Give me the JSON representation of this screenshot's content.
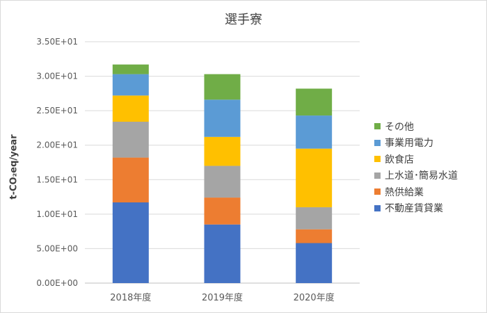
{
  "chart_data": {
    "type": "bar",
    "stacked": true,
    "title": "選手寮",
    "xlabel": "",
    "ylabel": "t-CO₂eq/year",
    "categories": [
      "2018年度",
      "2019年度",
      "2020年度"
    ],
    "ylim": [
      0,
      35
    ],
    "yticks": [
      0,
      5,
      10,
      15,
      20,
      25,
      30,
      35
    ],
    "ytick_labels": [
      "0.00E+00",
      "5.00E+00",
      "1.00E+01",
      "1.50E+01",
      "2.00E+01",
      "2.50E+01",
      "3.00E+01",
      "3.50E+01"
    ],
    "grid": true,
    "legend_position": "right",
    "series": [
      {
        "name": "不動産賃貸業",
        "color": "#4472c4",
        "values": [
          11.7,
          8.5,
          5.8
        ]
      },
      {
        "name": "熱供給業",
        "color": "#ed7d31",
        "values": [
          6.5,
          3.9,
          2.0
        ]
      },
      {
        "name": "上水道･簡易水道",
        "color": "#a5a5a5",
        "values": [
          5.2,
          4.6,
          3.2
        ]
      },
      {
        "name": "飲食店",
        "color": "#ffc000",
        "values": [
          3.8,
          4.2,
          8.5
        ]
      },
      {
        "name": "事業用電力",
        "color": "#5b9bd5",
        "values": [
          3.1,
          5.4,
          4.8
        ]
      },
      {
        "name": "その他",
        "color": "#70ad47",
        "values": [
          1.4,
          3.7,
          3.9
        ]
      }
    ]
  }
}
